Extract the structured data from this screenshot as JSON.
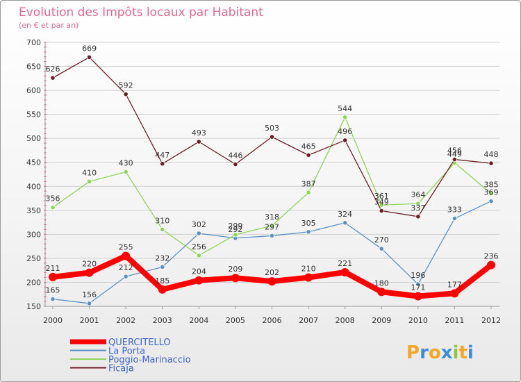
{
  "chart_data": {
    "type": "line",
    "title": "Evolution des Impôts locaux par Habitant",
    "subtitle": "(en € et par an)",
    "categories": [
      "2000",
      "2001",
      "2002",
      "2003",
      "2004",
      "2005",
      "2006",
      "2007",
      "2008",
      "2009",
      "2010",
      "2011",
      "2012"
    ],
    "ylim": [
      150,
      700
    ],
    "yticks": [
      150,
      200,
      250,
      300,
      350,
      400,
      450,
      500,
      550,
      600,
      650,
      700
    ],
    "grid": true,
    "legend_position": "bottom-left",
    "series": [
      {
        "name": "QUERCITELLO",
        "color": "#ff0000",
        "values": [
          211,
          220,
          255,
          185,
          204,
          209,
          202,
          210,
          221,
          180,
          171,
          177,
          236
        ]
      },
      {
        "name": "La Porta",
        "color": "#5b8fc4",
        "values": [
          165,
          156,
          212,
          232,
          302,
          292,
          297,
          305,
          324,
          270,
          196,
          333,
          369
        ]
      },
      {
        "name": "Poggio-Marinaccio",
        "color": "#8fd45a",
        "values": [
          356,
          410,
          430,
          310,
          256,
          299,
          318,
          387,
          544,
          361,
          364,
          449,
          385
        ]
      },
      {
        "name": "Ficaja",
        "color": "#6b1f24",
        "values": [
          626,
          669,
          592,
          447,
          493,
          446,
          503,
          465,
          496,
          349,
          337,
          456,
          448
        ]
      }
    ]
  },
  "logo": {
    "text": "Proxiti",
    "letters": [
      "P",
      "r",
      "o",
      "x",
      "i",
      "t",
      "i"
    ],
    "colors": [
      "#f5a623",
      "#3b8ede",
      "#f5a623",
      "#3b8ede",
      "#8cc63f",
      "#f5a623",
      "#3b8ede"
    ]
  }
}
